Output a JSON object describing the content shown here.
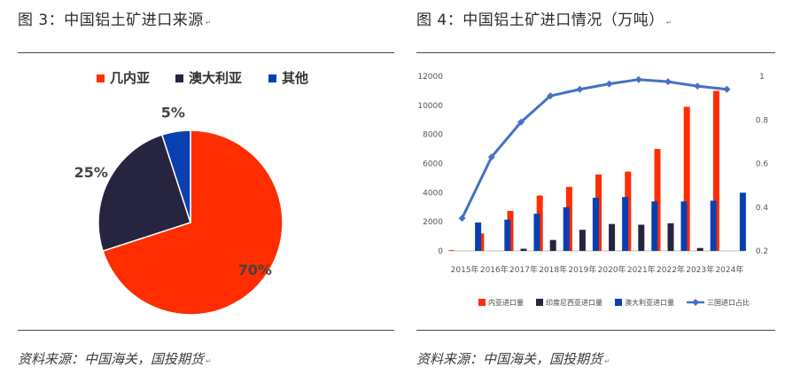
{
  "left": {
    "title": "图 3：中国铝土矿进口来源",
    "source": "资料来源：中国海关，国投期货",
    "mark": "↵"
  },
  "right": {
    "title": "图 4：中国铝土矿进口情况（万吨）",
    "source": "资料来源：中国海关，国投期货",
    "mark": "↵"
  },
  "chart_data": [
    {
      "type": "pie",
      "title": "",
      "legend_position": "top",
      "slices": [
        {
          "name": "几内亚",
          "value": 70,
          "label": "70%",
          "color": "#ff2d00"
        },
        {
          "name": "澳大利亚",
          "value": 25,
          "label": "25%",
          "color": "#272440"
        },
        {
          "name": "其他",
          "value": 5,
          "label": "5%",
          "color": "#0a3fb2"
        }
      ]
    },
    {
      "type": "bar",
      "title": "",
      "categories": [
        "2015年",
        "2016年",
        "2017年",
        "2018年",
        "2019年",
        "2020年",
        "2021年",
        "2022年",
        "2023年",
        "2024年"
      ],
      "series": [
        {
          "name": "内亚进口量",
          "type": "bar",
          "axis": "left",
          "color": "#ff2d00",
          "values": [
            50,
            1200,
            2750,
            3800,
            4400,
            5250,
            5450,
            7000,
            9900,
            11000
          ]
        },
        {
          "name": "印度尼西亚进口量",
          "type": "bar",
          "axis": "left",
          "color": "#272440",
          "values": [
            0,
            0,
            150,
            750,
            1450,
            1850,
            1800,
            1900,
            200,
            0
          ]
        },
        {
          "name": "澳大利亚进口量",
          "type": "bar",
          "axis": "left",
          "color": "#0a3fb2",
          "values": [
            1950,
            2150,
            2550,
            3000,
            3650,
            3700,
            3400,
            3400,
            3450,
            4000
          ]
        },
        {
          "name": "三国进口占比",
          "type": "line",
          "axis": "right",
          "color": "#4472c4",
          "values": [
            0.35,
            0.63,
            0.79,
            0.91,
            0.94,
            0.965,
            0.985,
            0.975,
            0.955,
            0.94
          ]
        }
      ],
      "ylim_left": [
        0,
        12000
      ],
      "yticks_left": [
        "0",
        "2000",
        "4000",
        "6000",
        "8000",
        "10000",
        "12000"
      ],
      "ylim_right": [
        0.2,
        1.0
      ],
      "yticks_right": [
        "0.2",
        "0.4",
        "0.6",
        "0.8",
        "1"
      ],
      "grid": false,
      "legend_position": "bottom"
    }
  ]
}
